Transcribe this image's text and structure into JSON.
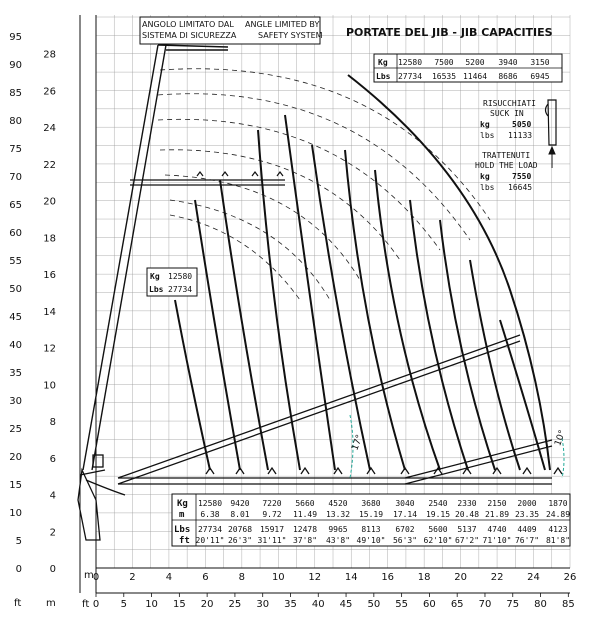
{
  "axes": {
    "y_unit_m": "m",
    "y_unit_ft": "ft",
    "x_unit_m": "m",
    "x_unit_ft": "ft",
    "y_m_ticks": [
      "0",
      "2",
      "4",
      "6",
      "8",
      "10",
      "12",
      "14",
      "16",
      "18",
      "20",
      "22",
      "24",
      "26",
      "28"
    ],
    "y_ft_ticks": [
      "0",
      "5",
      "10",
      "15",
      "20",
      "25",
      "30",
      "35",
      "40",
      "45",
      "50",
      "55",
      "60",
      "65",
      "70",
      "75",
      "80",
      "85",
      "90",
      "95"
    ],
    "x_m_ticks": [
      "0",
      "2",
      "4",
      "6",
      "8",
      "10",
      "12",
      "14",
      "16",
      "18",
      "20",
      "22",
      "24",
      "26"
    ],
    "x_ft_ticks": [
      "0",
      "5",
      "10",
      "15",
      "20",
      "25",
      "30",
      "35",
      "40",
      "45",
      "50",
      "55",
      "60",
      "65",
      "70",
      "75",
      "80",
      "85"
    ]
  },
  "header": {
    "angle_it_line1": "ANGOLO LIMITATO DAL",
    "angle_it_line2": "SISTEMA DI SICUREZZA",
    "angle_en_line1": "ANGLE LIMITED BY",
    "angle_en_line2": "SAFETY SYSTEM",
    "title": "PORTATE DEL JIB  -  JIB CAPACITIES"
  },
  "jib_caps": {
    "kg_label": "Kg",
    "lbs_label": "Lbs",
    "kg": [
      "12580",
      "7500",
      "5200",
      "3940",
      "3150"
    ],
    "lbs": [
      "27734",
      "16535",
      "11464",
      "8686",
      "6945"
    ]
  },
  "sucked": {
    "title1": "RISUCCHIATI",
    "title2": "SUCK IN",
    "kg_label": "kg",
    "kg": "5050",
    "lbs_label": "lbs",
    "lbs": "11133"
  },
  "held": {
    "title1": "TRATTENUTI",
    "title2": "HOLD THE LOAD",
    "kg_label": "kg",
    "kg": "7550",
    "lbs_label": "lbs",
    "lbs": "16645"
  },
  "boom_label": {
    "kg_label": "Kg",
    "kg": "12580",
    "lbs_label": "Lbs",
    "lbs": "27734"
  },
  "angles": {
    "a1": "17°",
    "a2": "10°"
  },
  "bottom_table": {
    "kg_label": "Kg",
    "m_label": "m",
    "lbs_label": "Lbs",
    "ft_label": "ft",
    "kg": [
      "12580",
      "9420",
      "7220",
      "5660",
      "4520",
      "3680",
      "3040",
      "2540",
      "2330",
      "2150",
      "2000",
      "1870"
    ],
    "m": [
      "6.38",
      "8.01",
      "9.72",
      "11.49",
      "13.32",
      "15.19",
      "17.14",
      "19.15",
      "20.48",
      "21.89",
      "23.35",
      "24.89"
    ],
    "lbs": [
      "27734",
      "20768",
      "15917",
      "12478",
      "9965",
      "8113",
      "6702",
      "5600",
      "5137",
      "4740",
      "4409",
      "4123"
    ],
    "ft": [
      "20'11\"",
      "26'3\"",
      "31'11\"",
      "37'8\"",
      "43'8\"",
      "49'10\"",
      "56'3\"",
      "62'10\"",
      "67'2\"",
      "71'10\"",
      "76'7\"",
      "81'8\""
    ]
  }
}
